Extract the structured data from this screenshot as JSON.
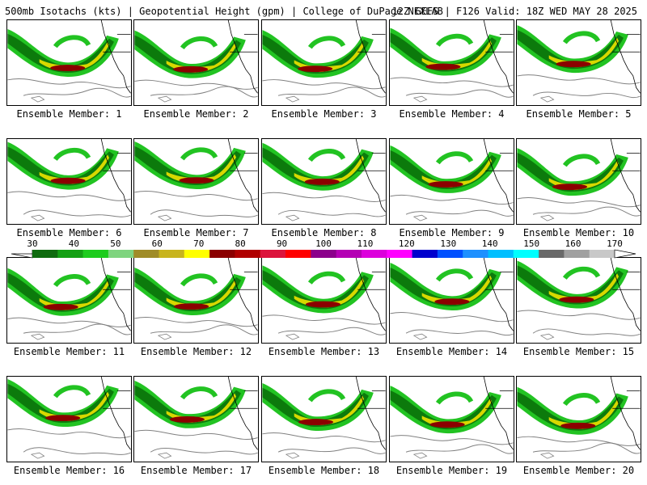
{
  "header": {
    "left": "500mb Isotachs (kts) | Geopotential Height (gpm) | College of DuPage NEXLAB",
    "right": "12Z GEFS | F126 Valid: 18Z WED MAY 28 2025"
  },
  "panel_label_prefix": "Ensemble Member: ",
  "members": [
    "1",
    "2",
    "3",
    "4",
    "5",
    "6",
    "7",
    "8",
    "9",
    "10",
    "11",
    "12",
    "13",
    "14",
    "15",
    "16",
    "17",
    "18",
    "19",
    "20"
  ],
  "colorbar": {
    "ticks": [
      "30",
      "40",
      "50",
      "60",
      "70",
      "80",
      "90",
      "100",
      "110",
      "120",
      "130",
      "140",
      "150",
      "160",
      "170"
    ],
    "colors": [
      "#0f6b0f",
      "#14a014",
      "#1ecc1e",
      "#7fd47f",
      "#a08c28",
      "#c8b41e",
      "#ffff00",
      "#8b0000",
      "#b00000",
      "#dc143c",
      "#ff0000",
      "#8b008b",
      "#b400b4",
      "#dc00dc",
      "#ff00ff",
      "#0000cd",
      "#0050ff",
      "#1e90ff",
      "#00bfff",
      "#00ffff",
      "#696969",
      "#a0a0a0",
      "#c8c8c8"
    ]
  },
  "map_colors": {
    "green_light": "#22c322",
    "green_dark": "#0c7a0c",
    "olive": "#a0a028",
    "yellow": "#d8d800",
    "darkred": "#8b0000",
    "contour": "#808080",
    "coast": "#000000"
  }
}
